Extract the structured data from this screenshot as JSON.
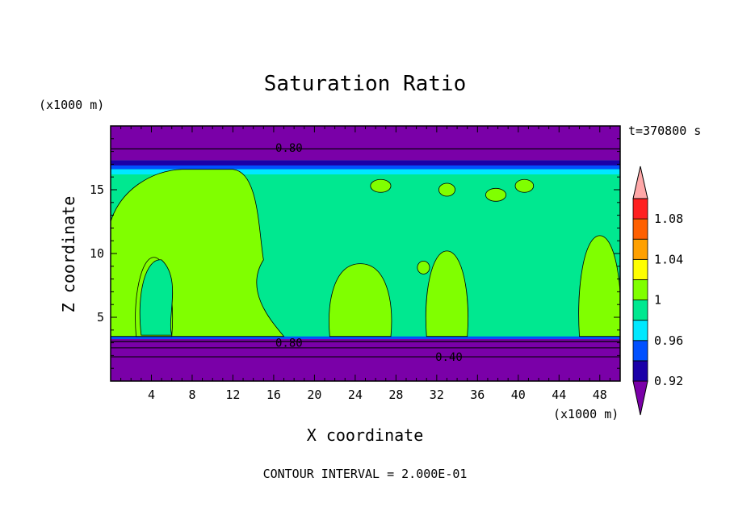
{
  "chart_data": {
    "type": "heatmap",
    "title": "Saturation Ratio",
    "time_label": "t=370800 s",
    "xlabel": "X coordinate",
    "ylabel": "Z coordinate",
    "x_unit": "(x1000 m)",
    "y_unit": "(x1000 m)",
    "footer": "CONTOUR INTERVAL = 2.000E-01",
    "xlim": [
      0,
      50
    ],
    "ylim": [
      0,
      20
    ],
    "x_ticks": [
      4,
      8,
      12,
      16,
      20,
      24,
      28,
      32,
      36,
      40,
      44,
      48
    ],
    "y_ticks": [
      5,
      10,
      15
    ],
    "colorbar": {
      "levels": [
        0.92,
        0.94,
        0.96,
        0.98,
        1.0,
        1.02,
        1.04,
        1.06,
        1.08,
        1.1
      ],
      "tick_labels": [
        "0.92",
        "0.96",
        "1",
        "1.04",
        "1.08"
      ],
      "tick_values": [
        0.92,
        0.96,
        1.0,
        1.04,
        1.08
      ],
      "colors": [
        "#7a00a8",
        "#1a00a8",
        "#0050ff",
        "#00e8ff",
        "#00e890",
        "#80ff00",
        "#ffff00",
        "#ffa000",
        "#ff6000",
        "#ff2020",
        "#ffa8a8"
      ],
      "extend": "both"
    },
    "contour_labels": [
      {
        "text": "0.80",
        "x": 17.5,
        "z": 18.3
      },
      {
        "text": "0.80",
        "x": 17.5,
        "z": 3.0
      },
      {
        "text": "0.40",
        "x": 33.2,
        "z": 1.9
      }
    ],
    "regions": {
      "lower_dry_layer_top": 3.3,
      "moist_layer_top": 16.7,
      "upper_dry_layer_bottom": 17.3,
      "supersaturated_cells": [
        {
          "x": [
            0,
            15
          ],
          "z_top": 16.6
        },
        {
          "x": [
            2.5,
            6
          ],
          "z_top": 9.7
        },
        {
          "x": [
            21.5,
            27.5
          ],
          "z_top": 9.2
        },
        {
          "x": [
            31,
            35
          ],
          "z_top": 10.2
        },
        {
          "x": [
            46,
            50
          ],
          "z_top": 11.4
        }
      ]
    }
  }
}
